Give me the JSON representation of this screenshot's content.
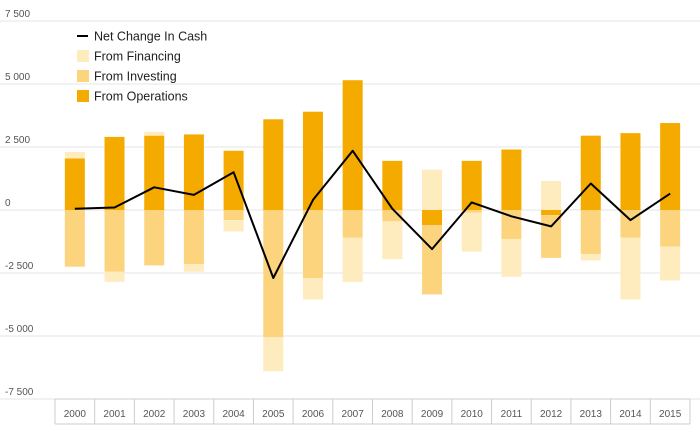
{
  "chart_data": {
    "type": "bar",
    "stacked": true,
    "categories": [
      "2000",
      "2001",
      "2002",
      "2003",
      "2004",
      "2005",
      "2006",
      "2007",
      "2008",
      "2009",
      "2010",
      "2011",
      "2012",
      "2013",
      "2014",
      "2015"
    ],
    "ylim": [
      -7500,
      7500
    ],
    "yticks": [
      -7500,
      -5000,
      -2500,
      0,
      2500,
      5000,
      7500
    ],
    "ytick_labels": [
      "-7 500",
      "-5 000",
      "-2 500",
      "0",
      "2 500",
      "5 000",
      "7 500"
    ],
    "grid": true,
    "legend_position": "top-left",
    "series": [
      {
        "name": "From Operations",
        "kind": "bar",
        "color": "#F5AA00",
        "values": [
          2050,
          2900,
          2950,
          3000,
          2350,
          3600,
          3900,
          5150,
          1950,
          -600,
          1950,
          2400,
          -200,
          2950,
          3050,
          3450
        ]
      },
      {
        "name": "From Investing",
        "kind": "bar",
        "color": "#FCD47E",
        "values": [
          -2250,
          -2450,
          -2200,
          -2150,
          -400,
          -5050,
          -2700,
          -1100,
          -450,
          -2750,
          -100,
          -1150,
          -1700,
          -1750,
          -1100,
          -1450
        ]
      },
      {
        "name": "From Financing",
        "kind": "bar",
        "color": "#FEEBBE",
        "values": [
          250,
          -400,
          150,
          -300,
          -450,
          -1350,
          -850,
          -1750,
          -1500,
          1600,
          -1550,
          -1500,
          1150,
          -250,
          -2450,
          -1350
        ]
      },
      {
        "name": "Net Change In Cash",
        "kind": "line",
        "color": "#000000",
        "values": [
          50,
          100,
          900,
          600,
          1500,
          -2700,
          400,
          2350,
          50,
          -1550,
          300,
          -250,
          -650,
          1050,
          -400,
          650
        ]
      }
    ],
    "legend": [
      "Net Change In Cash",
      "From Financing",
      "From Investing",
      "From Operations"
    ]
  }
}
